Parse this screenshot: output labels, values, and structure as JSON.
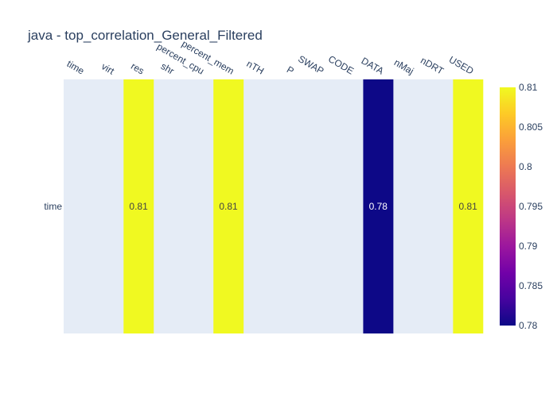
{
  "chart_data": {
    "type": "heatmap",
    "title": "java - top_correlation_General_Filtered",
    "x": [
      "time",
      "virt",
      "res",
      "shr",
      "percent_cpu",
      "percent_mem",
      "nTH",
      "P",
      "SWAP",
      "CODE",
      "DATA",
      "nMaj",
      "nDRT",
      "USED"
    ],
    "y": [
      "time"
    ],
    "z": [
      [
        null,
        null,
        0.81,
        null,
        null,
        0.81,
        null,
        null,
        null,
        null,
        0.78,
        null,
        null,
        0.81
      ]
    ],
    "cell_labels": [
      [
        "",
        "",
        "0.81",
        "",
        "",
        "0.81",
        "",
        "",
        "",
        "",
        "0.78",
        "",
        "",
        "0.81"
      ]
    ],
    "zmin": 0.78,
    "zmax": 0.81,
    "colorscale": "plasma",
    "colorbar_ticks": [
      "0.81",
      "0.805",
      "0.8",
      "0.795",
      "0.79",
      "0.785",
      "0.78"
    ],
    "colorbar_tick_values": [
      0.81,
      0.805,
      0.8,
      0.795,
      0.79,
      0.785,
      0.78
    ],
    "background_color": "#e5ecf6",
    "text_color": "#2a3f5f"
  }
}
